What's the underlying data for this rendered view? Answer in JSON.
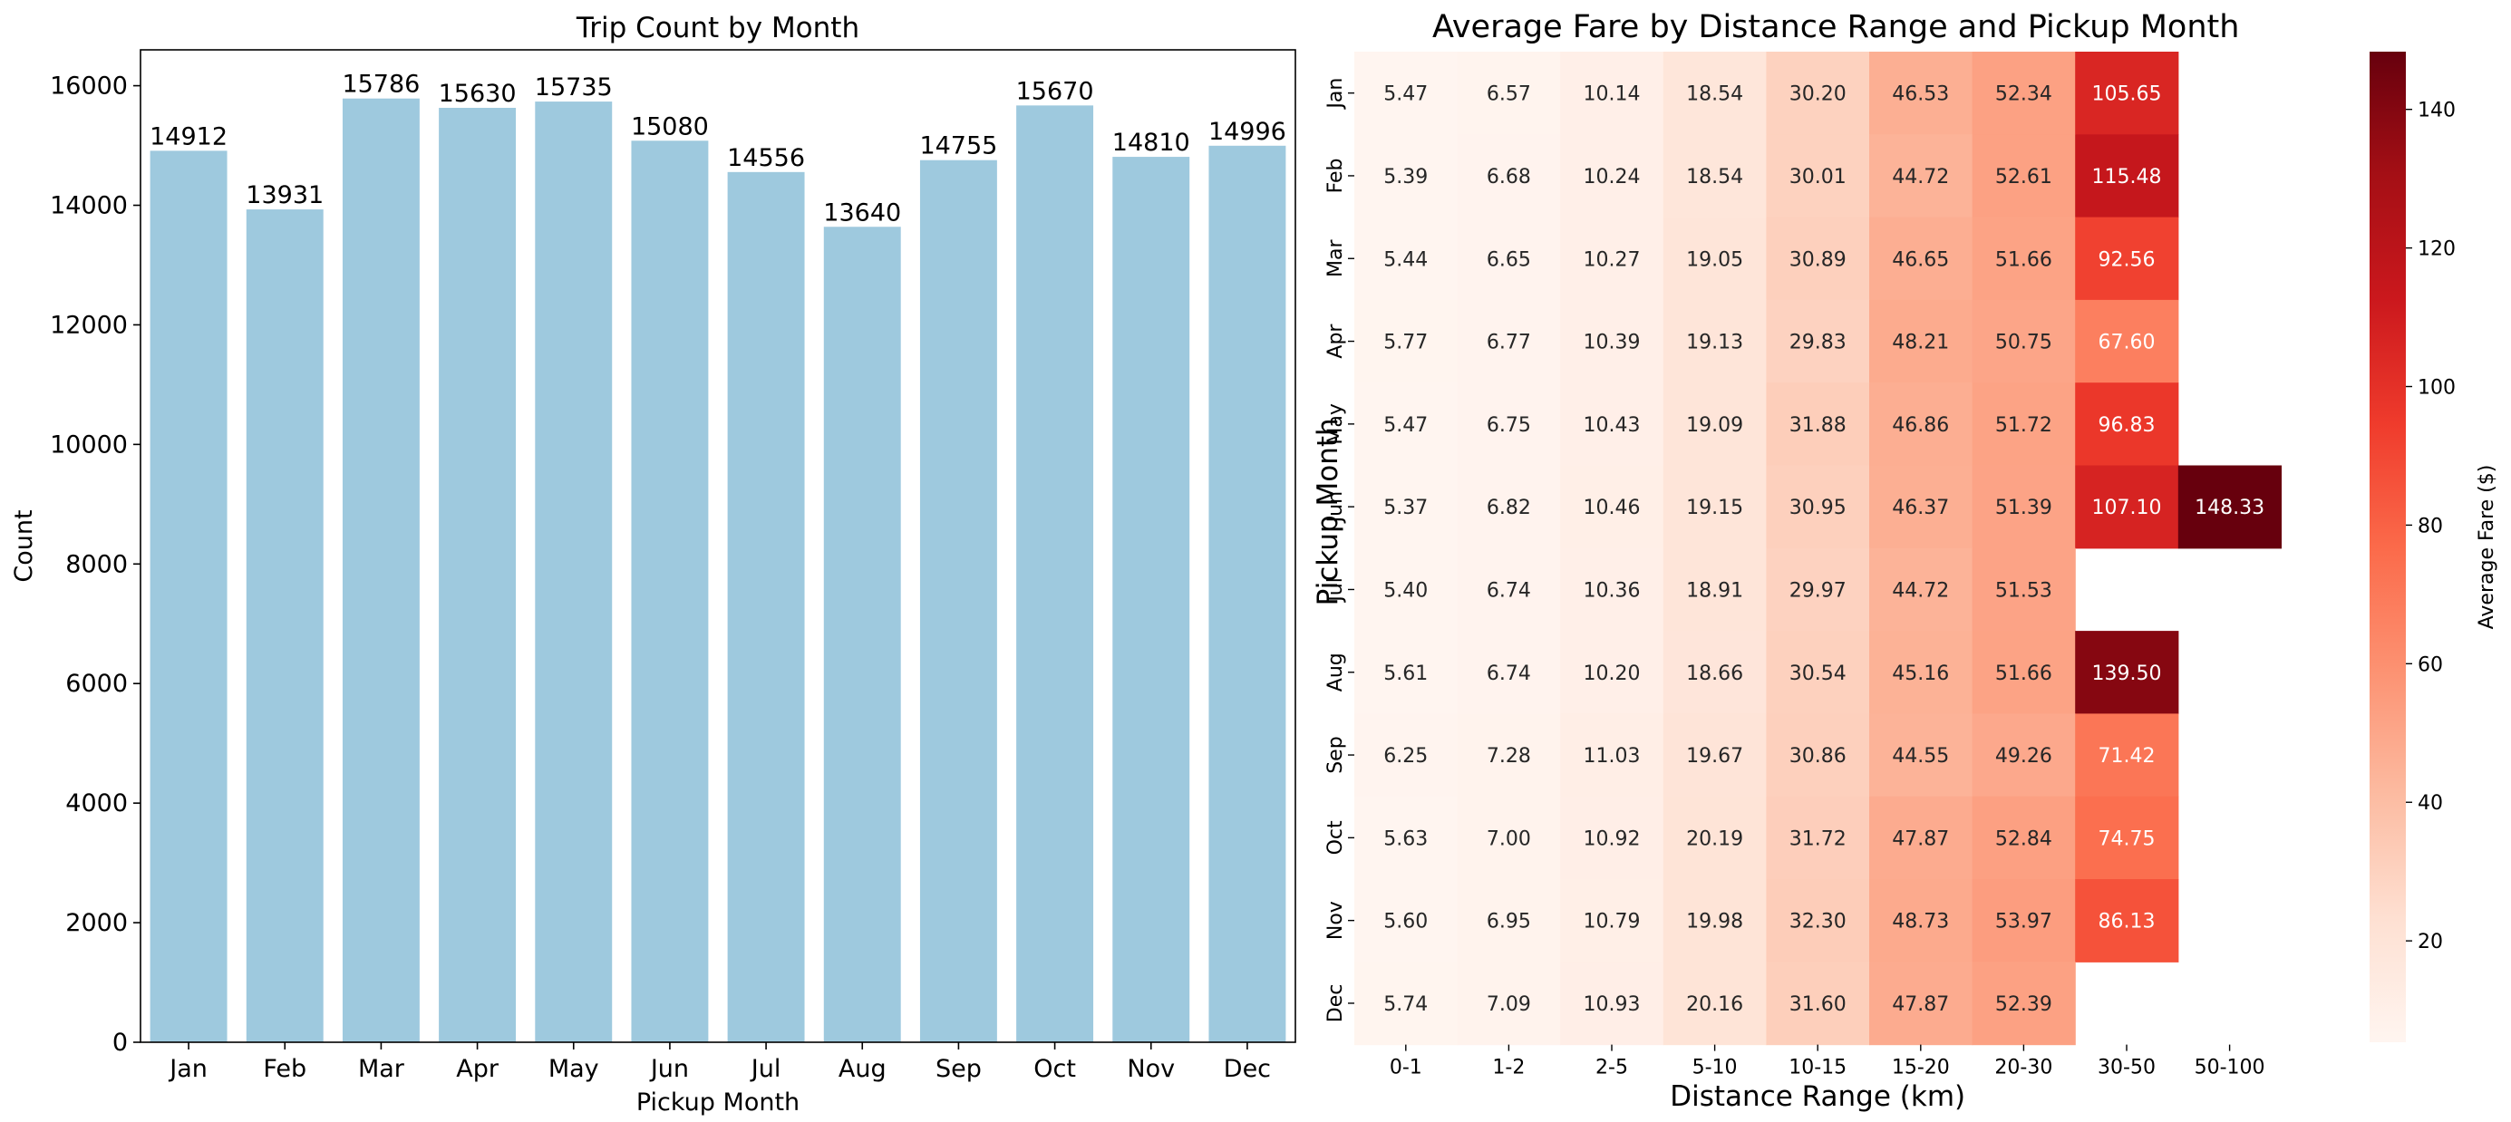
{
  "chart_data": [
    {
      "type": "bar",
      "title": "Trip Count by Month",
      "xlabel": "Pickup Month",
      "ylabel": "Count",
      "ylim": [
        0,
        16600
      ],
      "yticks": [
        0,
        2000,
        4000,
        6000,
        8000,
        10000,
        12000,
        14000,
        16000
      ],
      "categories": [
        "Jan",
        "Feb",
        "Mar",
        "Apr",
        "May",
        "Jun",
        "Jul",
        "Aug",
        "Sep",
        "Oct",
        "Nov",
        "Dec"
      ],
      "values": [
        14912,
        13931,
        15786,
        15630,
        15735,
        15080,
        14556,
        13640,
        14755,
        15670,
        14810,
        14996
      ],
      "bar_color": "#9ec9de",
      "data_labels": true
    },
    {
      "type": "heatmap",
      "title": "Average Fare by Distance Range and Pickup Month",
      "xlabel": "Distance Range (km)",
      "ylabel": "Pickup Month",
      "x_categories": [
        "0-1",
        "1-2",
        "2-5",
        "5-10",
        "10-15",
        "15-20",
        "20-30",
        "30-50",
        "50-100"
      ],
      "y_categories": [
        "Jan",
        "Feb",
        "Mar",
        "Apr",
        "May",
        "Jun",
        "Jul",
        "Aug",
        "Sep",
        "Oct",
        "Nov",
        "Dec"
      ],
      "values": [
        [
          5.47,
          6.57,
          10.14,
          18.54,
          30.2,
          46.53,
          52.34,
          105.65,
          null
        ],
        [
          5.39,
          6.68,
          10.24,
          18.54,
          30.01,
          44.72,
          52.61,
          115.48,
          null
        ],
        [
          5.44,
          6.65,
          10.27,
          19.05,
          30.89,
          46.65,
          51.66,
          92.56,
          null
        ],
        [
          5.77,
          6.77,
          10.39,
          19.13,
          29.83,
          48.21,
          50.75,
          67.6,
          null
        ],
        [
          5.47,
          6.75,
          10.43,
          19.09,
          31.88,
          46.86,
          51.72,
          96.83,
          null
        ],
        [
          5.37,
          6.82,
          10.46,
          19.15,
          30.95,
          46.37,
          51.39,
          107.1,
          148.33
        ],
        [
          5.4,
          6.74,
          10.36,
          18.91,
          29.97,
          44.72,
          51.53,
          null,
          null
        ],
        [
          5.61,
          6.74,
          10.2,
          18.66,
          30.54,
          45.16,
          51.66,
          139.5,
          null
        ],
        [
          6.25,
          7.28,
          11.03,
          19.67,
          30.86,
          44.55,
          49.26,
          71.42,
          null
        ],
        [
          5.63,
          7.0,
          10.92,
          20.19,
          31.72,
          47.87,
          52.84,
          74.75,
          null
        ],
        [
          5.6,
          6.95,
          10.79,
          19.98,
          32.3,
          48.73,
          53.97,
          86.13,
          null
        ],
        [
          5.74,
          7.09,
          10.93,
          20.16,
          31.6,
          47.87,
          52.39,
          null,
          null
        ]
      ],
      "colormap": "Reds",
      "color_range": [
        5.37,
        148.33
      ],
      "colorbar": {
        "label": "Average Fare ($)",
        "ticks": [
          20,
          40,
          60,
          80,
          100,
          120,
          140
        ]
      }
    }
  ]
}
